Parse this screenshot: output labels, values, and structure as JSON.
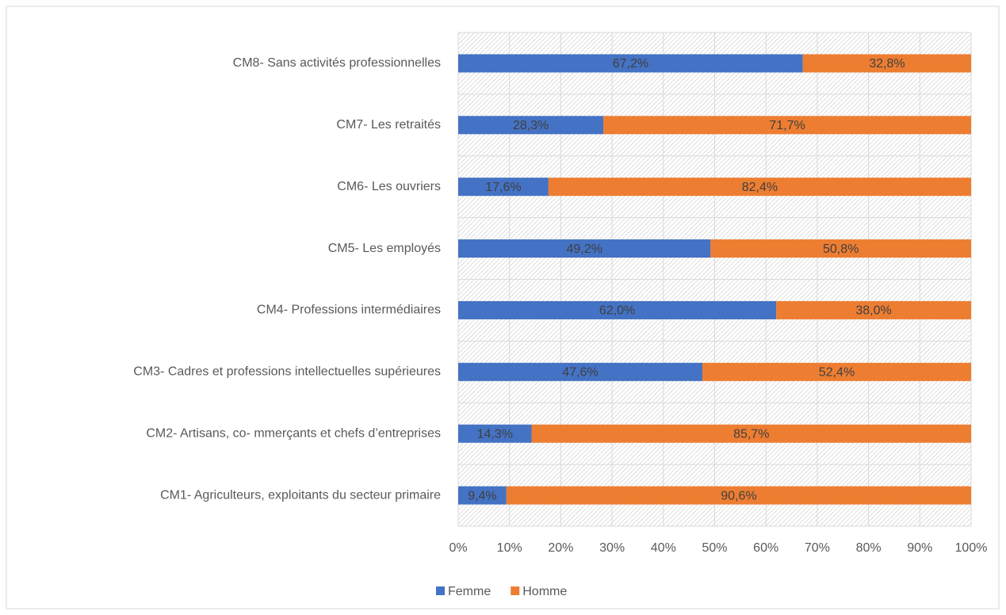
{
  "chart_data": {
    "type": "bar",
    "orientation": "horizontal",
    "stacked": true,
    "categories": [
      "CM1- Agriculteurs, exploitants du secteur primaire",
      "CM2- Artisans, co- mmerçants et chefs d’entreprises",
      "CM3- Cadres et professions intellectuelles supérieures",
      "CM4- Professions intermédiaires",
      "CM5- Les employés",
      "CM6- Les ouvriers",
      "CM7- Les retraités",
      "CM8- Sans activités professionnelles"
    ],
    "series": [
      {
        "name": "Femme",
        "color": "#4472c4",
        "values": [
          9.4,
          14.3,
          47.6,
          62.0,
          49.2,
          17.6,
          28.3,
          67.2
        ],
        "value_labels": [
          "9,4%",
          "14,3%",
          "47,6%",
          "62,0%",
          "49,2%",
          "17,6%",
          "28,3%",
          "67,2%"
        ]
      },
      {
        "name": "Homme",
        "color": "#ed7d31",
        "values": [
          90.6,
          85.7,
          52.4,
          38.0,
          50.8,
          82.4,
          71.7,
          32.8
        ],
        "value_labels": [
          "90,6%",
          "85,7%",
          "52,4%",
          "38,0%",
          "50,8%",
          "82,4%",
          "71,7%",
          "32,8%"
        ]
      }
    ],
    "xlim": [
      0,
      100
    ],
    "xticks": [
      {
        "value": 0,
        "label": "0%"
      },
      {
        "value": 10,
        "label": "10%"
      },
      {
        "value": 20,
        "label": "20%"
      },
      {
        "value": 30,
        "label": "30%"
      },
      {
        "value": 40,
        "label": "40%"
      },
      {
        "value": 50,
        "label": "50%"
      },
      {
        "value": 60,
        "label": "60%"
      },
      {
        "value": 70,
        "label": "70%"
      },
      {
        "value": 80,
        "label": "80%"
      },
      {
        "value": 90,
        "label": "90%"
      },
      {
        "value": 100,
        "label": "100%"
      }
    ],
    "grid": true,
    "legend": "bottom"
  }
}
